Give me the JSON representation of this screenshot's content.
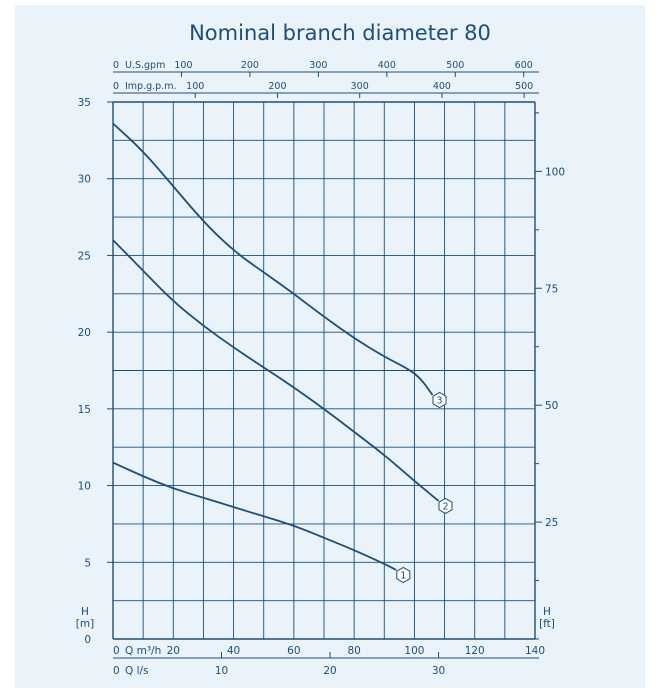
{
  "chart_data": {
    "type": "line",
    "title": "Nominal branch diameter 80",
    "colors": {
      "background": "#eaf3f9",
      "grid": "#1d4e7a",
      "line": "#1d4e7a",
      "text": "#1d4e7a"
    },
    "x_axis": {
      "label": "Q m³/h",
      "range": [
        0,
        140
      ],
      "ticks": [
        20,
        40,
        60,
        80,
        100,
        120,
        140
      ]
    },
    "x_axis_ls": {
      "label": "Q l/s",
      "ticks": [
        10,
        20,
        30
      ]
    },
    "x_axis_usgpm": {
      "label": "U.S.gpm",
      "ticks": [
        100,
        200,
        300,
        400,
        500,
        600
      ]
    },
    "x_axis_impgpm": {
      "label": "Imp.g.p.m.",
      "ticks": [
        100,
        200,
        300,
        400,
        500
      ]
    },
    "y_axis": {
      "label": "H [m]",
      "range": [
        0,
        35
      ],
      "ticks": [
        5,
        10,
        15,
        20,
        25,
        30,
        35
      ]
    },
    "y_axis_ft": {
      "label": "H [ft]",
      "ticks": [
        25,
        50,
        75,
        100
      ]
    },
    "grid": true,
    "series": [
      {
        "name": "1",
        "x": [
          0,
          10,
          20,
          30,
          40,
          50,
          60,
          70,
          80,
          90,
          94
        ],
        "y": [
          11.5,
          10.6,
          9.8,
          9.2,
          8.6,
          8.0,
          7.4,
          6.6,
          5.8,
          4.9,
          4.5
        ]
      },
      {
        "name": "2",
        "x": [
          0,
          10,
          20,
          30,
          40,
          50,
          60,
          70,
          80,
          90,
          100,
          108
        ],
        "y": [
          26.0,
          24.0,
          22.0,
          20.4,
          19.0,
          17.7,
          16.4,
          15.0,
          13.5,
          12.0,
          10.3,
          9.0
        ]
      },
      {
        "name": "3",
        "x": [
          0,
          10,
          20,
          30,
          40,
          50,
          60,
          70,
          80,
          90,
          98,
          102,
          106
        ],
        "y": [
          33.6,
          31.8,
          29.5,
          27.2,
          25.3,
          23.9,
          22.5,
          21.0,
          19.6,
          18.4,
          17.6,
          17.0,
          15.9
        ]
      }
    ]
  }
}
